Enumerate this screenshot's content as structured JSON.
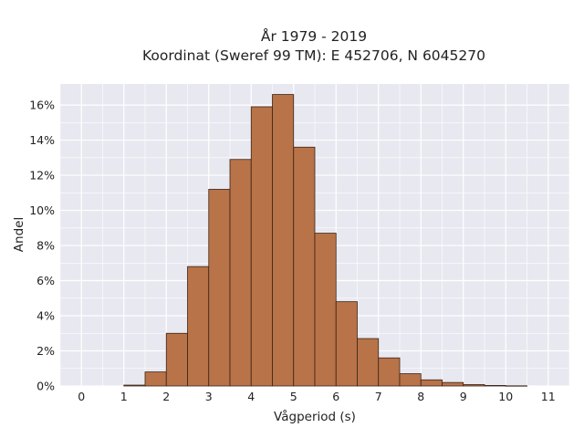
{
  "chart_data": {
    "type": "bar",
    "title_line1": "År 1979 - 2019",
    "title_line2": "Koordinat (Sweref 99 TM): E 452706, N 6045270",
    "xlabel": "Vågperiod (s)",
    "ylabel": "Andel",
    "xlim": [
      -0.5,
      11.5
    ],
    "ylim": [
      0,
      17.2
    ],
    "x_ticks": [
      0,
      1,
      2,
      3,
      4,
      5,
      6,
      7,
      8,
      9,
      10,
      11
    ],
    "y_ticks": [
      0,
      2,
      4,
      6,
      8,
      10,
      12,
      14,
      16
    ],
    "y_tick_suffix": "%",
    "bin_width": 0.5,
    "bins": [
      {
        "start": 1.0,
        "value": 0.05
      },
      {
        "start": 1.5,
        "value": 0.8
      },
      {
        "start": 2.0,
        "value": 3.0
      },
      {
        "start": 2.5,
        "value": 6.8
      },
      {
        "start": 3.0,
        "value": 11.2
      },
      {
        "start": 3.5,
        "value": 12.9
      },
      {
        "start": 4.0,
        "value": 15.9
      },
      {
        "start": 4.5,
        "value": 16.6
      },
      {
        "start": 5.0,
        "value": 13.6
      },
      {
        "start": 5.5,
        "value": 8.7
      },
      {
        "start": 6.0,
        "value": 4.8
      },
      {
        "start": 6.5,
        "value": 2.7
      },
      {
        "start": 7.0,
        "value": 1.6
      },
      {
        "start": 7.5,
        "value": 0.7
      },
      {
        "start": 8.0,
        "value": 0.35
      },
      {
        "start": 8.5,
        "value": 0.2
      },
      {
        "start": 9.0,
        "value": 0.08
      },
      {
        "start": 9.5,
        "value": 0.03
      },
      {
        "start": 10.0,
        "value": 0.01
      }
    ],
    "grid": true,
    "colors": {
      "plot_background": "#e8e8f0",
      "grid": "#ffffff",
      "bar_fill": "#b87348",
      "bar_edge": "#3a2418"
    }
  }
}
